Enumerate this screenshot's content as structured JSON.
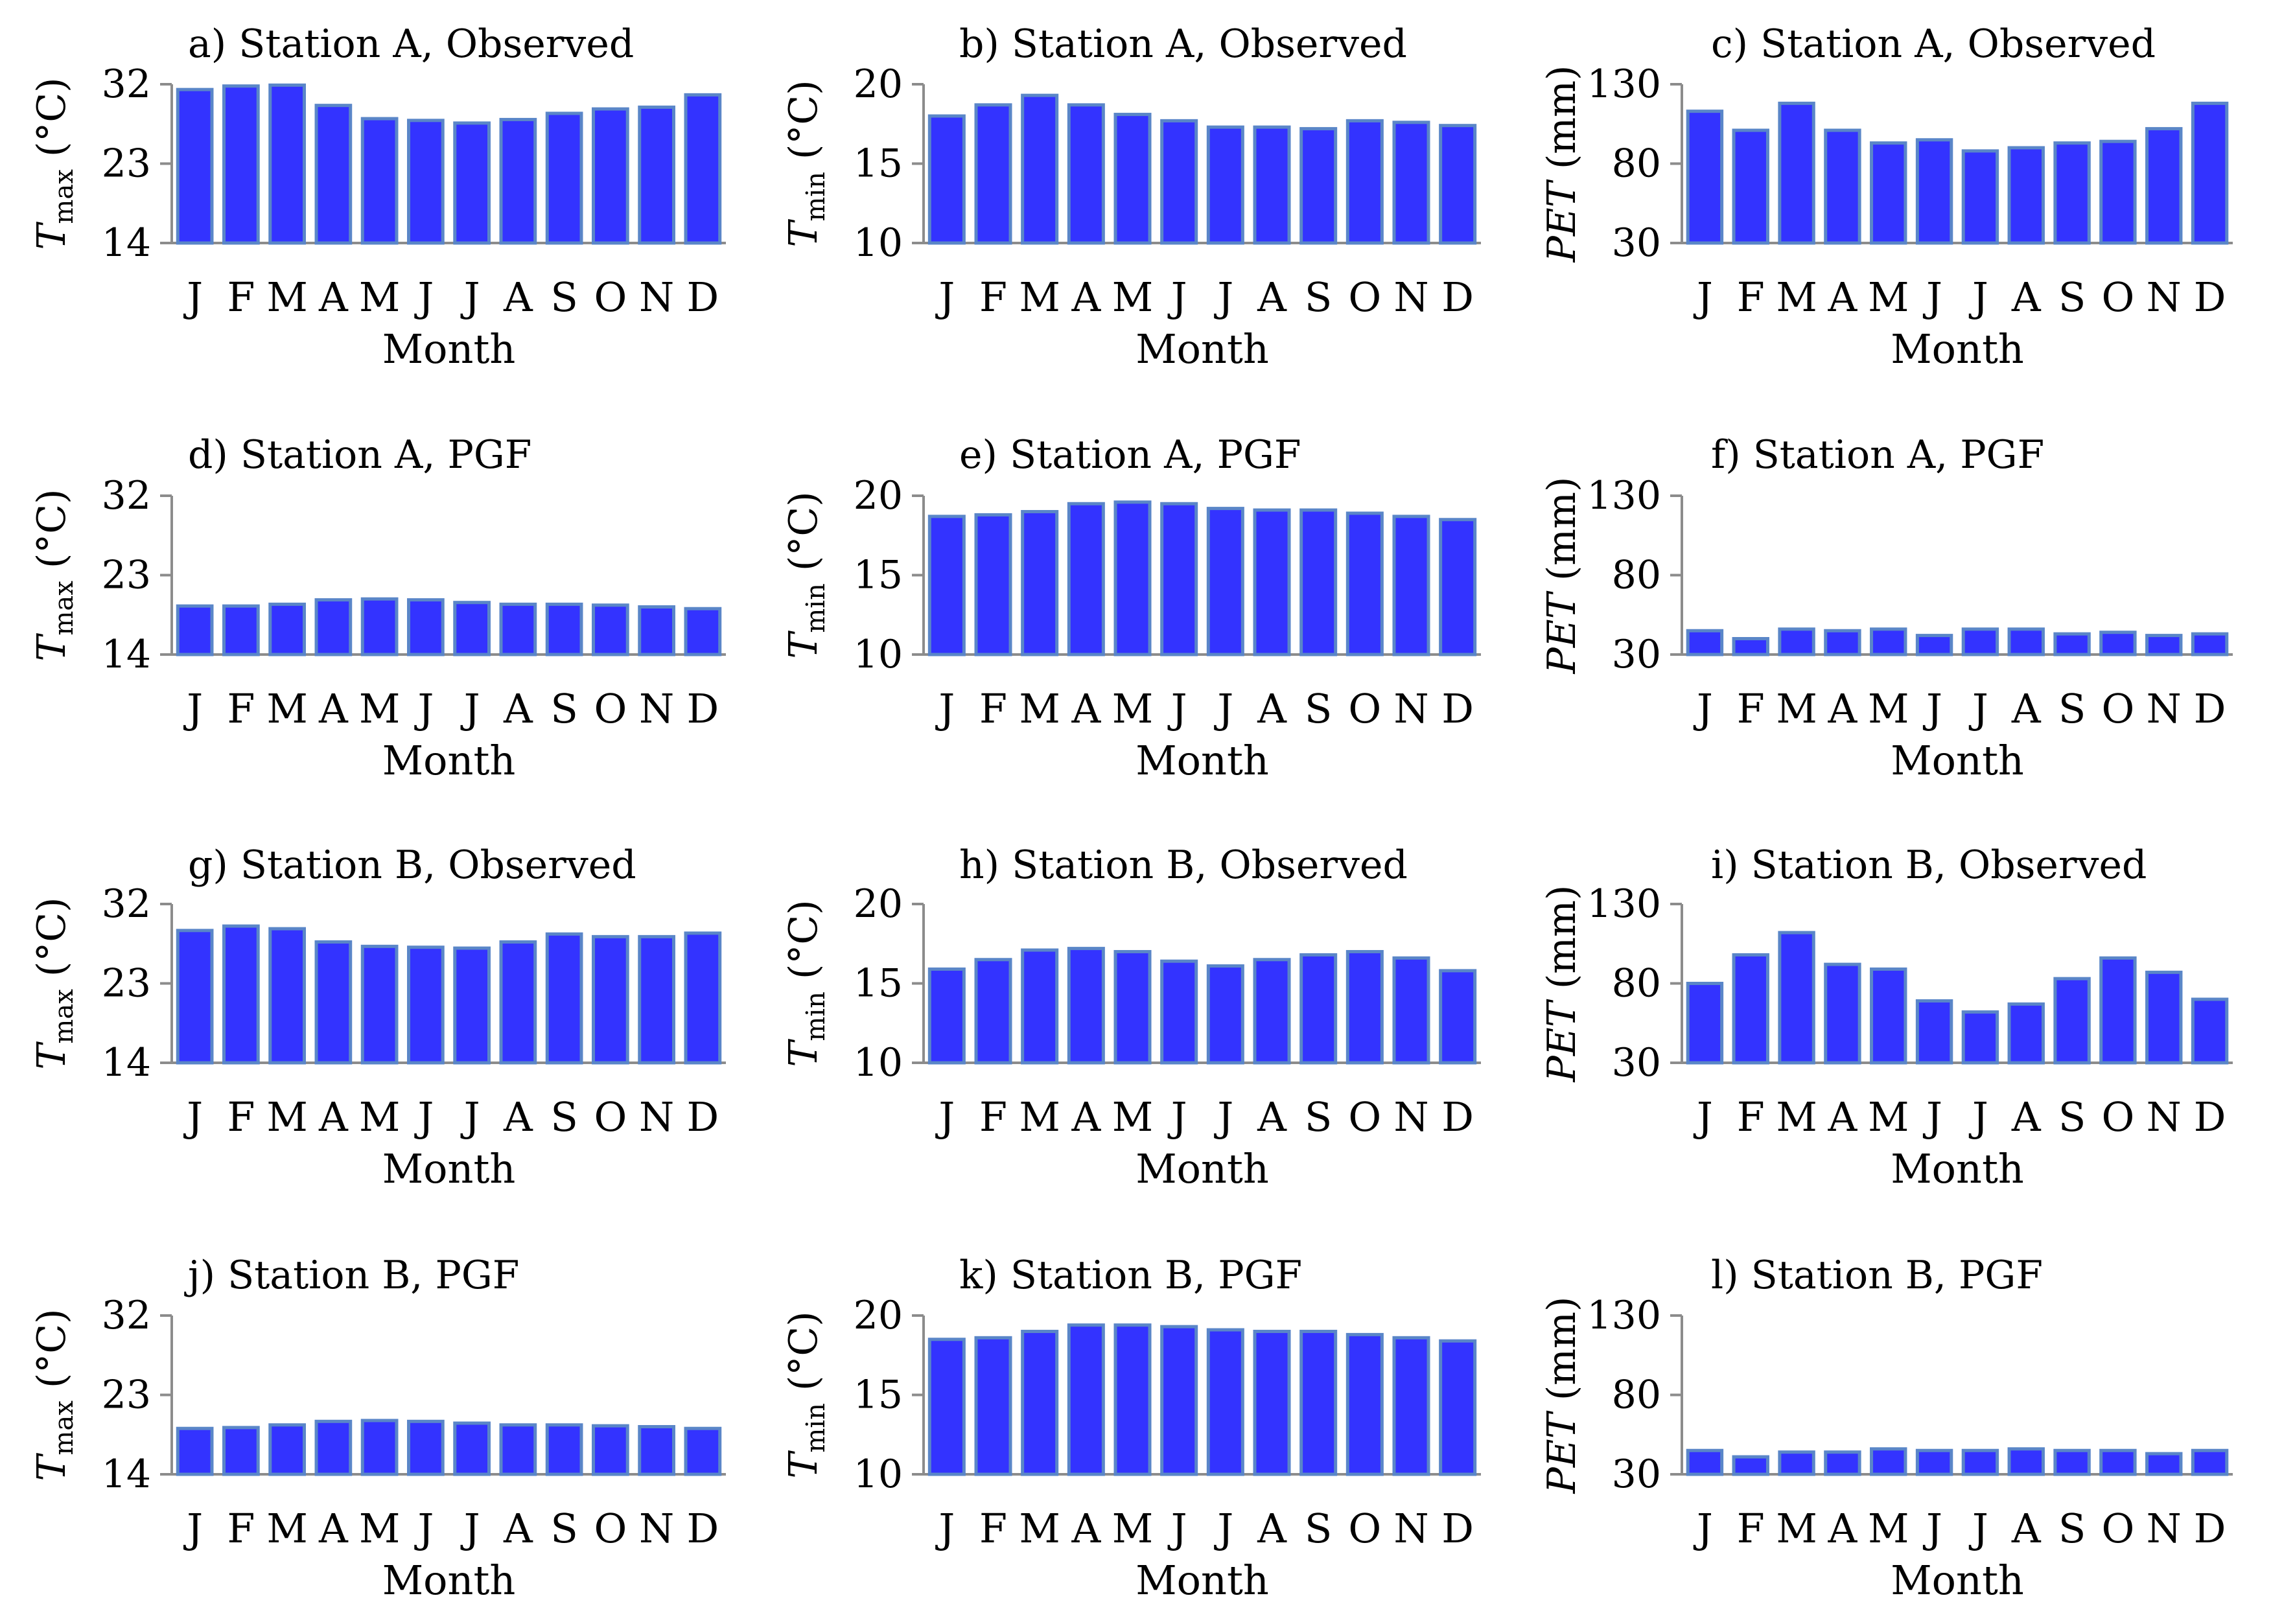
{
  "months": [
    "J",
    "F",
    "M",
    "A",
    "M",
    "J",
    "J",
    "A",
    "S",
    "O",
    "N",
    "D"
  ],
  "colors": {
    "bar": "#3333ff",
    "bar_edge": "#5a86c8",
    "axis": "#8c8c8c"
  },
  "chart_data": [
    {
      "id": "a",
      "type": "bar",
      "title": "a) Station A, Observed",
      "ylabel": "T_max (°C)",
      "xlabel": "Month",
      "ylim": [
        14,
        32
      ],
      "yticks": [
        "14",
        "23",
        "32"
      ],
      "values": [
        31.4,
        31.8,
        31.9,
        29.6,
        28.1,
        27.9,
        27.6,
        28.0,
        28.7,
        29.2,
        29.4,
        30.8
      ]
    },
    {
      "id": "b",
      "type": "bar",
      "title": "b) Station A, Observed",
      "ylabel": "T_min (°C)",
      "xlabel": "Month",
      "ylim": [
        10,
        20
      ],
      "yticks": [
        "10",
        "15",
        "20"
      ],
      "values": [
        18.0,
        18.7,
        19.3,
        18.7,
        18.1,
        17.7,
        17.3,
        17.3,
        17.2,
        17.7,
        17.6,
        17.4
      ]
    },
    {
      "id": "c",
      "type": "bar",
      "title": "c) Station A, Observed",
      "ylabel": "PET (mm)",
      "xlabel": "Month",
      "ylim": [
        30,
        130
      ],
      "yticks": [
        "30",
        "80",
        "130"
      ],
      "values": [
        113,
        101,
        118,
        101,
        93,
        95,
        88,
        90,
        93,
        94,
        102,
        118
      ]
    },
    {
      "id": "d",
      "type": "bar",
      "title": "d) Station A, PGF",
      "ylabel": "T_max (°C)",
      "xlabel": "Month",
      "ylim": [
        14,
        32
      ],
      "yticks": [
        "14",
        "23",
        "32"
      ],
      "values": [
        19.5,
        19.5,
        19.7,
        20.2,
        20.3,
        20.2,
        19.9,
        19.7,
        19.7,
        19.6,
        19.4,
        19.2
      ]
    },
    {
      "id": "e",
      "type": "bar",
      "title": "e) Station A, PGF",
      "ylabel": "T_min (°C)",
      "xlabel": "Month",
      "ylim": [
        10,
        20
      ],
      "yticks": [
        "10",
        "15",
        "20"
      ],
      "values": [
        18.7,
        18.8,
        19.0,
        19.5,
        19.6,
        19.5,
        19.2,
        19.1,
        19.1,
        18.9,
        18.7,
        18.5
      ]
    },
    {
      "id": "f",
      "type": "bar",
      "title": "f) Station A, PGF",
      "ylabel": "PET (mm)",
      "xlabel": "Month",
      "ylim": [
        30,
        130
      ],
      "yticks": [
        "30",
        "80",
        "130"
      ],
      "values": [
        45,
        40,
        46,
        45,
        46,
        42,
        46,
        46,
        43,
        44,
        42,
        43
      ]
    },
    {
      "id": "g",
      "type": "bar",
      "title": "g) Station B, Observed",
      "ylabel": "T_max (°C)",
      "xlabel": "Month",
      "ylim": [
        14,
        32
      ],
      "yticks": [
        "14",
        "23",
        "32"
      ],
      "values": [
        29.0,
        29.5,
        29.2,
        27.7,
        27.2,
        27.1,
        27.0,
        27.7,
        28.6,
        28.3,
        28.3,
        28.7
      ]
    },
    {
      "id": "h",
      "type": "bar",
      "title": "h) Station B, Observed",
      "ylabel": "T_min (°C)",
      "xlabel": "Month",
      "ylim": [
        10,
        20
      ],
      "yticks": [
        "10",
        "15",
        "20"
      ],
      "values": [
        15.9,
        16.5,
        17.1,
        17.2,
        17.0,
        16.4,
        16.1,
        16.5,
        16.8,
        17.0,
        16.6,
        15.8
      ]
    },
    {
      "id": "i",
      "type": "bar",
      "title": "i) Station B, Observed",
      "ylabel": "PET (mm)",
      "xlabel": "Month",
      "ylim": [
        30,
        130
      ],
      "yticks": [
        "30",
        "80",
        "130"
      ],
      "values": [
        80,
        98,
        112,
        92,
        89,
        69,
        62,
        67,
        83,
        96,
        87,
        70
      ]
    },
    {
      "id": "j",
      "type": "bar",
      "title": "j) Station B, PGF",
      "ylabel": "T_max (°C)",
      "xlabel": "Month",
      "ylim": [
        14,
        32
      ],
      "yticks": [
        "14",
        "23",
        "32"
      ],
      "values": [
        19.2,
        19.3,
        19.6,
        20.0,
        20.1,
        20.0,
        19.8,
        19.6,
        19.6,
        19.5,
        19.4,
        19.2
      ]
    },
    {
      "id": "k",
      "type": "bar",
      "title": "k) Station B, PGF",
      "ylabel": "T_min (°C)",
      "xlabel": "Month",
      "ylim": [
        10,
        20
      ],
      "yticks": [
        "10",
        "15",
        "20"
      ],
      "values": [
        18.5,
        18.6,
        19.0,
        19.4,
        19.4,
        19.3,
        19.1,
        19.0,
        19.0,
        18.8,
        18.6,
        18.4
      ]
    },
    {
      "id": "l",
      "type": "bar",
      "title": "l) Station B, PGF",
      "ylabel": "PET (mm)",
      "xlabel": "Month",
      "ylim": [
        30,
        130
      ],
      "yticks": [
        "30",
        "80",
        "130"
      ],
      "values": [
        45,
        41,
        44,
        44,
        46,
        45,
        45,
        46,
        45,
        45,
        43,
        45
      ]
    }
  ]
}
